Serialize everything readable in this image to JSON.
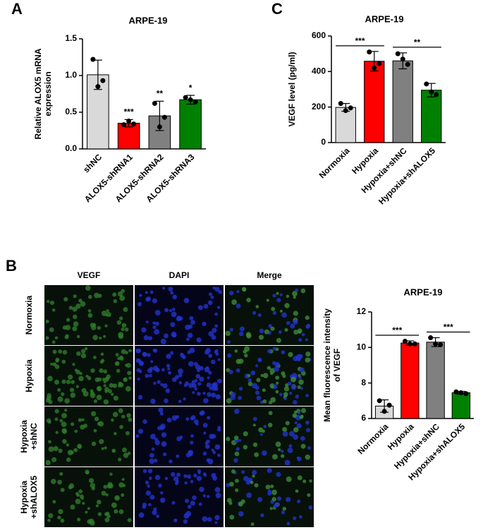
{
  "panel_labels": [
    "A",
    "B",
    "C"
  ],
  "micrograph": {
    "columns": [
      "VEGF",
      "DAPI",
      "Merge"
    ],
    "rows": [
      [
        "Normoxia"
      ],
      [
        "Hypoxia"
      ],
      [
        "Hypoxia",
        "+shNC"
      ],
      [
        "Hypoxia",
        "+shALOX5"
      ]
    ]
  },
  "chart_data": [
    {
      "type": "bar",
      "title": "ARPE-19",
      "y_label": [
        "Relative ALOX5 mRNA",
        "expression"
      ],
      "categories": [
        "shNC",
        "ALOX5-shRNA1",
        "ALOX5-shRNA2",
        "ALOX5-shRNA3"
      ],
      "values": [
        1.01,
        0.35,
        0.45,
        0.67
      ],
      "errors": [
        0.2,
        0.05,
        0.2,
        0.06
      ],
      "points": [
        [
          1.22,
          0.85,
          0.93
        ],
        [
          0.33,
          0.38,
          0.34
        ],
        [
          0.62,
          0.3,
          0.43
        ],
        [
          0.7,
          0.67,
          0.64
        ]
      ],
      "colors": [
        "#d9d9d9",
        "#ff0000",
        "#808080",
        "#008000"
      ],
      "significance": [
        null,
        "***",
        "**",
        "*"
      ],
      "ylim": [
        0,
        1.5
      ],
      "yticks": [
        {
          "value": 0,
          "label": "0.0"
        },
        0.5,
        {
          "value": 1,
          "label": "1.0"
        },
        1.5
      ]
    },
    {
      "type": "bar",
      "title": "ARPE-19",
      "y_label": [
        "VEGF level (pg/ml)"
      ],
      "categories": [
        "Normoxia",
        "Hypoxia",
        "Hypoxia+shNC",
        "Hypoxia+shALOX5"
      ],
      "values": [
        198,
        458,
        460,
        295
      ],
      "errors": [
        22,
        55,
        45,
        38
      ],
      "points": [
        [
          220,
          180,
          195
        ],
        [
          510,
          420,
          445
        ],
        [
          500,
          470,
          440
        ],
        [
          330,
          285,
          270
        ]
      ],
      "colors": [
        "#d9d9d9",
        "#ff0000",
        "#808080",
        "#008000"
      ],
      "comparisons": [
        {
          "from": 0,
          "to": 1,
          "label": "***"
        },
        {
          "from": 2,
          "to": 3,
          "label": "**"
        }
      ],
      "ylim": [
        0,
        600
      ],
      "yticks": [
        0,
        200,
        400,
        600
      ]
    },
    {
      "type": "bar",
      "title": "ARPE-19",
      "y_label": [
        "Mean fluorescence intensity",
        "of VEGF"
      ],
      "categories": [
        "Normoxia",
        "Hypoxia",
        "Hypoxia+shNC",
        "Hypoxia+shALOX5"
      ],
      "values": [
        6.7,
        10.25,
        10.3,
        7.45
      ],
      "errors": [
        0.35,
        0.12,
        0.25,
        0.08
      ],
      "points": [
        [
          7.0,
          6.4,
          6.75
        ],
        [
          10.35,
          10.2,
          10.2
        ],
        [
          10.55,
          10.2,
          10.15
        ],
        [
          7.5,
          7.45,
          7.4
        ]
      ],
      "colors": [
        "#d9d9d9",
        "#ff0000",
        "#808080",
        "#008000"
      ],
      "comparisons": [
        {
          "from": 0,
          "to": 1,
          "label": "***"
        },
        {
          "from": 2,
          "to": 3,
          "label": "***"
        }
      ],
      "ylim": [
        6,
        12
      ],
      "yticks": [
        6,
        8,
        10,
        12
      ]
    }
  ]
}
